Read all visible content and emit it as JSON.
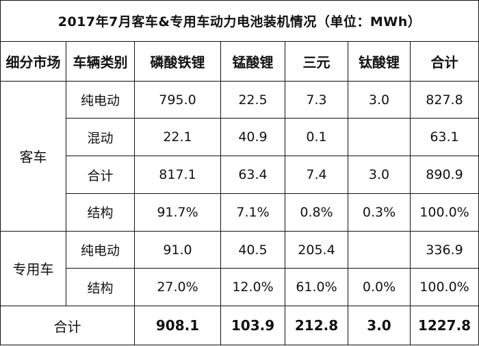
{
  "title": "2017年7月客车&专用车动力电池装机情况（单位：MWh）",
  "headers": [
    "细分市场",
    "车辆类别",
    "磷酸铁锂",
    "锰酸锂",
    "三元",
    "钛酸锂",
    "合计"
  ],
  "groups": [
    {
      "market": "客车",
      "rows": [
        {
          "category": "纯电动",
          "lfp": "795.0",
          "lmo": "22.5",
          "ncm": "7.3",
          "lto": "3.0",
          "total": "827.8"
        },
        {
          "category": "混动",
          "lfp": "22.1",
          "lmo": "40.9",
          "ncm": "0.1",
          "lto": "",
          "total": "63.1"
        },
        {
          "category": "合计",
          "lfp": "817.1",
          "lmo": "63.4",
          "ncm": "7.4",
          "lto": "3.0",
          "total": "890.9"
        },
        {
          "category": "结构",
          "lfp": "91.7%",
          "lmo": "7.1%",
          "ncm": "0.8%",
          "lto": "0.3%",
          "total": "100.0%"
        }
      ]
    },
    {
      "market": "专用车",
      "rows": [
        {
          "category": "纯电动",
          "lfp": "91.0",
          "lmo": "40.5",
          "ncm": "205.4",
          "lto": "",
          "total": "336.9"
        },
        {
          "category": "结构",
          "lfp": "27.0%",
          "lmo": "12.0%",
          "ncm": "61.0%",
          "lto": "0.0%",
          "total": "100.0%"
        }
      ]
    }
  ],
  "grand_total": {
    "label": "合计",
    "lfp": "908.1",
    "lmo": "103.9",
    "ncm": "212.8",
    "lto": "3.0",
    "total": "1227.8"
  }
}
